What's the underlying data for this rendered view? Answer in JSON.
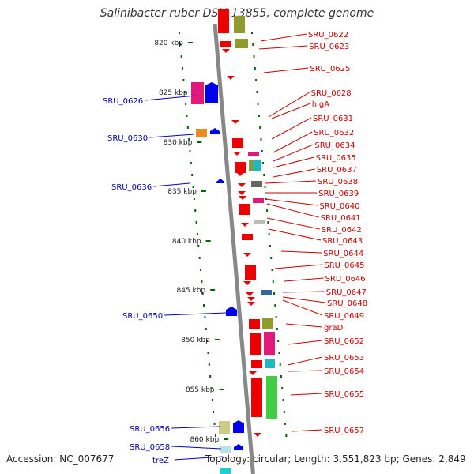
{
  "title": "Salinibacter ruber DSM 13855, complete genome",
  "accession_label": "Accession: NC_007677",
  "footer_info": "Topology: circular; Length: 3,551,823 bp; Genes: 2,849",
  "colors": {
    "forward": "#0000ee",
    "reverse": "#ee0000",
    "backbone": "#888888",
    "tick": "#006600"
  },
  "scale_labels": [
    "820 kbp",
    "825 kbp",
    "830 kbp",
    "835 kbp",
    "840 kbp",
    "845 kbp",
    "850 kbp",
    "855 kbp",
    "860 kbp"
  ],
  "left_gene_labels": [
    "SRU_0626",
    "SRU_0630",
    "SRU_0636",
    "SRU_0650",
    "SRU_0656",
    "SRU_0658",
    "treZ"
  ],
  "right_gene_labels": [
    "SRU_0622",
    "SRU_0623",
    "SRU_0625",
    "SRU_0628",
    "higA",
    "SRU_0631",
    "SRU_0632",
    "SRU_0634",
    "SRU_0635",
    "SRU_0637",
    "SRU_0638",
    "SRU_0639",
    "SRU_0640",
    "SRU_0641",
    "SRU_0642",
    "SRU_0643",
    "SRU_0644",
    "SRU_0645",
    "SRU_0646",
    "SRU_0647",
    "SRU_0648",
    "SRU_0649",
    "graD",
    "SRU_0652",
    "SRU_0653",
    "SRU_0654",
    "SRU_0655",
    "SRU_0657"
  ]
}
